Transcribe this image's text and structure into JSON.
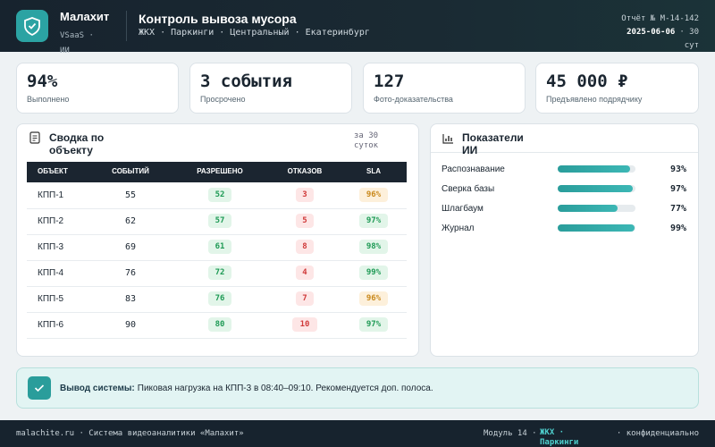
{
  "header": {
    "brand": "Малахит",
    "brand_tag": "VSaaS · ИИ",
    "title": "Контроль вывоза мусора",
    "subtitle": "ЖКХ · Паркинги · Центральный · Екатеринбург",
    "report_id": "Отчёт № M-14-142",
    "report_date": "2025-06-06",
    "report_period": "· 30 сут"
  },
  "kpis": [
    {
      "value": "94%",
      "label": "Выполнено"
    },
    {
      "value": "3 события",
      "label": "Просрочено"
    },
    {
      "value": "127",
      "label": "Фото-доказательства"
    },
    {
      "value": "45 000 ₽",
      "label": "Предъявлено подрядчику"
    }
  ],
  "summary": {
    "title": "Сводка по объекту",
    "period": "за 30 суток",
    "columns": [
      "ОБЪЕКТ",
      "СОБЫТИЙ",
      "РАЗРЕШЕНО",
      "ОТКАЗОВ",
      "SLA"
    ],
    "rows": [
      [
        "КПП-1",
        55,
        52,
        3,
        "96%"
      ],
      [
        "КПП-2",
        62,
        57,
        5,
        "97%"
      ],
      [
        "КПП-3",
        69,
        61,
        8,
        "98%"
      ],
      [
        "КПП-4",
        76,
        72,
        4,
        "99%"
      ],
      [
        "КПП-5",
        83,
        76,
        7,
        "96%"
      ],
      [
        "КПП-6",
        90,
        80,
        10,
        "97%"
      ]
    ],
    "sla_tones": [
      "warn",
      "ok",
      "ok",
      "ok",
      "warn",
      "ok"
    ]
  },
  "ai": {
    "title": "Показатели ИИ",
    "xlim": [
      0,
      100
    ],
    "metrics": [
      {
        "label": "Распознавание",
        "value": 93,
        "value_label": "93%"
      },
      {
        "label": "Сверка базы",
        "value": 97,
        "value_label": "97%"
      },
      {
        "label": "Шлагбаум",
        "value": 77,
        "value_label": "77%"
      },
      {
        "label": "Журнал",
        "value": 99,
        "value_label": "99%"
      }
    ]
  },
  "alert": {
    "title": "Вывод системы:",
    "text": "Пиковая нагрузка на КПП-3 в 08:40–09:10. Рекомендуется доп. полоса."
  },
  "footer": {
    "left": "malachite.ru · Система видеоаналитики «Малахит»",
    "module": "Модуль 14 ·",
    "section": "ЖКХ · Паркинги",
    "note": "· конфиденциально"
  }
}
